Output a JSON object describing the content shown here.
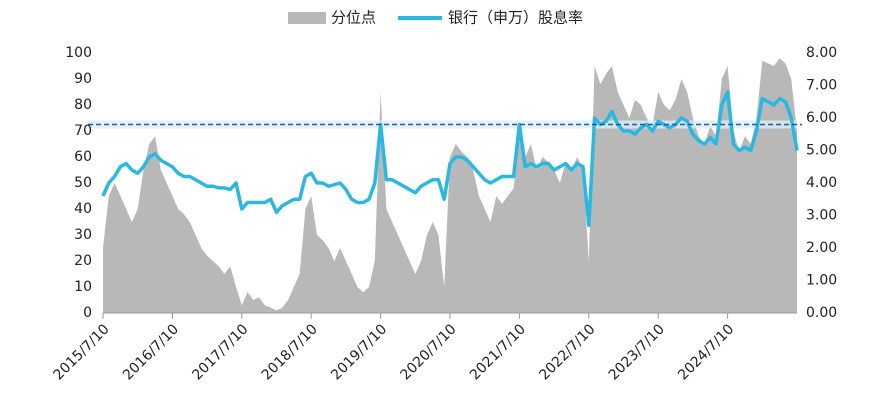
{
  "chart_data": {
    "type": "combo",
    "categories": [
      "2015/7/10",
      null,
      null,
      null,
      null,
      null,
      null,
      null,
      null,
      null,
      null,
      null,
      "2016/7/10",
      null,
      null,
      null,
      null,
      null,
      null,
      null,
      null,
      null,
      null,
      null,
      "2017/7/10",
      null,
      null,
      null,
      null,
      null,
      null,
      null,
      null,
      null,
      null,
      null,
      "2018/7/10",
      null,
      null,
      null,
      null,
      null,
      null,
      null,
      null,
      null,
      null,
      null,
      "2019/7/10",
      null,
      null,
      null,
      null,
      null,
      null,
      null,
      null,
      null,
      null,
      null,
      "2020/7/10",
      null,
      null,
      null,
      null,
      null,
      null,
      null,
      null,
      null,
      null,
      null,
      "2021/7/10",
      null,
      null,
      null,
      null,
      null,
      null,
      null,
      null,
      null,
      null,
      null,
      "2022/7/10",
      null,
      null,
      null,
      null,
      null,
      null,
      null,
      null,
      null,
      null,
      null,
      "2023/7/10",
      null,
      null,
      null,
      null,
      null,
      null,
      null,
      null,
      null,
      null,
      null,
      "2024/7/10",
      null,
      null,
      null,
      null,
      null,
      null,
      null,
      null,
      null,
      null,
      null,
      null
    ],
    "series": [
      {
        "name": "分位点",
        "type": "area",
        "color": "#b8b8b8",
        "values": [
          25,
          45,
          50,
          45,
          40,
          35,
          40,
          55,
          65,
          68,
          55,
          50,
          45,
          40,
          38,
          35,
          30,
          25,
          22,
          20,
          18,
          15,
          18,
          10,
          3,
          8,
          5,
          6,
          3,
          2,
          1,
          2,
          5,
          10,
          15,
          40,
          45,
          30,
          28,
          25,
          20,
          25,
          20,
          15,
          10,
          8,
          10,
          20,
          85,
          40,
          35,
          30,
          25,
          20,
          15,
          20,
          30,
          35,
          30,
          10,
          60,
          65,
          62,
          60,
          55,
          45,
          40,
          35,
          45,
          42,
          45,
          48,
          70,
          60,
          65,
          55,
          60,
          58,
          55,
          50,
          58,
          55,
          60,
          55,
          20,
          95,
          88,
          92,
          95,
          85,
          80,
          75,
          82,
          80,
          75,
          72,
          85,
          80,
          78,
          82,
          90,
          85,
          75,
          68,
          65,
          72,
          68,
          90,
          95,
          70,
          62,
          68,
          65,
          75,
          97,
          96,
          95,
          98,
          96,
          90,
          70
        ]
      },
      {
        "name": "银行（申万）股息率",
        "type": "line",
        "axis": "y2",
        "color": "#2ab8e0",
        "values": [
          3.6,
          4.0,
          4.2,
          4.5,
          4.6,
          4.4,
          4.3,
          4.5,
          4.8,
          4.9,
          4.7,
          4.6,
          4.5,
          4.3,
          4.2,
          4.2,
          4.1,
          4.0,
          3.9,
          3.9,
          3.85,
          3.85,
          3.8,
          4.0,
          3.2,
          3.4,
          3.4,
          3.4,
          3.4,
          3.5,
          3.1,
          3.3,
          3.4,
          3.5,
          3.5,
          4.2,
          4.3,
          4.0,
          4.0,
          3.9,
          3.95,
          4.0,
          3.8,
          3.5,
          3.4,
          3.4,
          3.5,
          4.0,
          5.8,
          4.1,
          4.1,
          4.0,
          3.9,
          3.8,
          3.7,
          3.9,
          4.0,
          4.1,
          4.1,
          3.5,
          4.6,
          4.8,
          4.8,
          4.7,
          4.5,
          4.3,
          4.1,
          4.0,
          4.1,
          4.2,
          4.2,
          4.2,
          5.8,
          4.5,
          4.6,
          4.5,
          4.6,
          4.6,
          4.4,
          4.5,
          4.6,
          4.4,
          4.6,
          4.5,
          2.7,
          6.0,
          5.8,
          5.9,
          6.2,
          5.8,
          5.6,
          5.6,
          5.5,
          5.7,
          5.8,
          5.6,
          5.9,
          5.8,
          5.7,
          5.8,
          6.0,
          5.9,
          5.5,
          5.3,
          5.2,
          5.4,
          5.2,
          6.4,
          6.8,
          5.2,
          5.0,
          5.1,
          5.0,
          5.6,
          6.6,
          6.5,
          6.4,
          6.6,
          6.5,
          6.0,
          5.0
        ]
      }
    ],
    "ylim": [
      0,
      100
    ],
    "yticks": [
      0,
      10,
      20,
      30,
      40,
      50,
      60,
      70,
      80,
      90,
      100
    ],
    "y2lim": [
      0,
      8
    ],
    "y2ticks": [
      {
        "value": 0,
        "label": "0.00"
      },
      {
        "value": 1,
        "label": "1.00"
      },
      {
        "value": 2,
        "label": "2.00"
      },
      {
        "value": 3,
        "label": "3.00"
      },
      {
        "value": 4,
        "label": "4.00"
      },
      {
        "value": 5,
        "label": "5.00"
      },
      {
        "value": 6,
        "label": "6.00"
      },
      {
        "value": 7,
        "label": "7.00"
      },
      {
        "value": 8,
        "label": "8.00"
      }
    ],
    "reference_line": {
      "value": 5.8,
      "axis": "y2",
      "color": "#1f5c99"
    },
    "legend": "top",
    "grid": false
  }
}
